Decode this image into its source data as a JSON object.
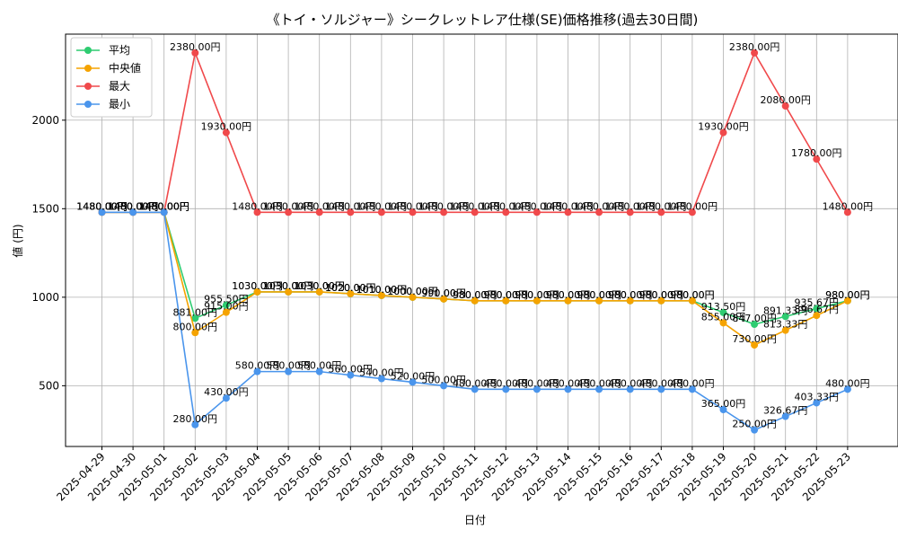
{
  "chart_data": {
    "type": "line",
    "title": "《トイ・ソルジャー》シークレットレア仕様(SE)価格推移(過去30日間)",
    "xlabel": "日付",
    "ylabel": "値 (円)",
    "ylim": [
      157,
      2486
    ],
    "yticks": [
      500,
      1000,
      1500,
      2000
    ],
    "grid": true,
    "legend_position": "top-left",
    "categories": [
      "2025-04-29",
      "2025-04-30",
      "2025-05-01",
      "2025-05-02",
      "2025-05-03",
      "2025-05-04",
      "2025-05-05",
      "2025-05-06",
      "2025-05-07",
      "2025-05-08",
      "2025-05-09",
      "2025-05-10",
      "2025-05-11",
      "2025-05-12",
      "2025-05-13",
      "2025-05-14",
      "2025-05-15",
      "2025-05-16",
      "2025-05-17",
      "2025-05-18",
      "2025-05-19",
      "2025-05-20",
      "2025-05-21",
      "2025-05-22",
      "2025-05-23"
    ],
    "series": [
      {
        "name": "平均",
        "color": "#2ecc71",
        "values": [
          1480,
          1480,
          1480,
          881,
          955.5,
          1030,
          1030,
          1030,
          1020,
          1010,
          1000,
          990,
          980,
          980,
          980,
          980,
          980,
          980,
          980,
          980,
          913.5,
          847,
          891.33,
          935.67,
          980
        ],
        "labels": [
          "1480.00円",
          "1480.00円",
          "1480.00円",
          "881.00円",
          "955.50円",
          "1030.00円",
          "1030.00円",
          "1030.00円",
          "1020.00円",
          "1010.00円",
          "1000.00円",
          "990.00円",
          "980.00円",
          "980.00円",
          "980.00円",
          "980.00円",
          "980.00円",
          "980.00円",
          "980.00円",
          "980.00円",
          "913.50円",
          "847.00円",
          "891.33円",
          "935.67円",
          "980.00円"
        ]
      },
      {
        "name": "中央値",
        "color": "#f5a300",
        "values": [
          1480,
          1480,
          1480,
          800,
          915,
          1030,
          1030,
          1030,
          1020,
          1010,
          1000,
          990,
          980,
          980,
          980,
          980,
          980,
          980,
          980,
          980,
          855,
          730,
          813.33,
          896.67,
          980
        ],
        "labels": [
          "1480.00円",
          "1480.00円",
          "1480.00円",
          "800.00円",
          "915.00円",
          "1030.00円",
          "1030.00円",
          "1030.00円",
          "1020.00円",
          "1010.00円",
          "1000.00円",
          "990.00円",
          "980.00円",
          "980.00円",
          "980.00円",
          "980.00円",
          "980.00円",
          "980.00円",
          "980.00円",
          "980.00円",
          "855.00円",
          "730.00円",
          "813.33円",
          "896.67円",
          "980.00円"
        ]
      },
      {
        "name": "最大",
        "color": "#f0494b",
        "values": [
          1480,
          1480,
          1480,
          2380,
          1930,
          1480,
          1480,
          1480,
          1480,
          1480,
          1480,
          1480,
          1480,
          1480,
          1480,
          1480,
          1480,
          1480,
          1480,
          1480,
          1930,
          2380,
          2080,
          1780,
          1480
        ],
        "labels": [
          "1480.00円",
          "1480.00円",
          "1480.00円",
          "2380.00円",
          "1930.00円",
          "1480.00円",
          "1480.00円",
          "1480.00円",
          "1480.00円",
          "1480.00円",
          "1480.00円",
          "1480.00円",
          "1480.00円",
          "1480.00円",
          "1480.00円",
          "1480.00円",
          "1480.00円",
          "1480.00円",
          "1480.00円",
          "1480.00円",
          "1930.00円",
          "2380.00円",
          "2080.00円",
          "1780.00円",
          "1480.00円"
        ]
      },
      {
        "name": "最小",
        "color": "#4a95ec",
        "values": [
          1480,
          1480,
          1480,
          280,
          430,
          580,
          580,
          580,
          560,
          540,
          520,
          500,
          480,
          480,
          480,
          480,
          480,
          480,
          480,
          480,
          365,
          250,
          326.67,
          403.33,
          480
        ],
        "labels": [
          "1480.00円",
          "1480.00円",
          "1480.00円",
          "280.00円",
          "430.00円",
          "580.00円",
          "580.00円",
          "580.00円",
          "560.00円",
          "540.00円",
          "520.00円",
          "500.00円",
          "480.00円",
          "480.00円",
          "480.00円",
          "480.00円",
          "480.00円",
          "480.00円",
          "480.00円",
          "480.00円",
          "365.00円",
          "250.00円",
          "326.67円",
          "403.33円",
          "480.00円"
        ]
      }
    ]
  }
}
